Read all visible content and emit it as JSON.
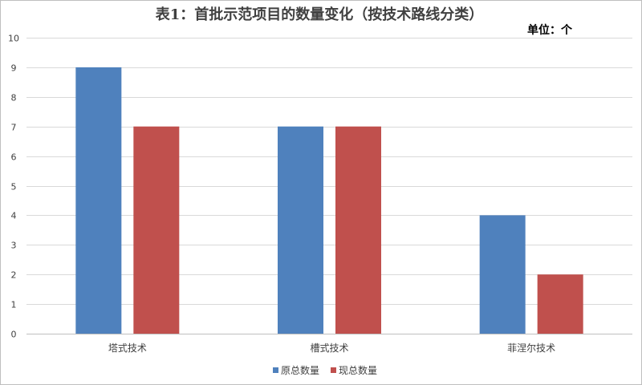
{
  "chart_data": {
    "type": "bar",
    "title": "表1：首批示范项目的数量变化（按技术路线分类）",
    "unit_label": "单位：个",
    "categories": [
      "塔式技术",
      "槽式技术",
      "菲涅尔技术"
    ],
    "series": [
      {
        "name": "原总数量",
        "values": [
          9,
          7,
          4
        ],
        "color": "#4f81bd"
      },
      {
        "name": "现总数量",
        "values": [
          7,
          7,
          2
        ],
        "color": "#c0504d"
      }
    ],
    "ylim": [
      0,
      10
    ],
    "y_ticks": [
      0,
      1,
      2,
      3,
      4,
      5,
      6,
      7,
      8,
      9,
      10
    ],
    "grid": true,
    "legend_position": "bottom"
  }
}
